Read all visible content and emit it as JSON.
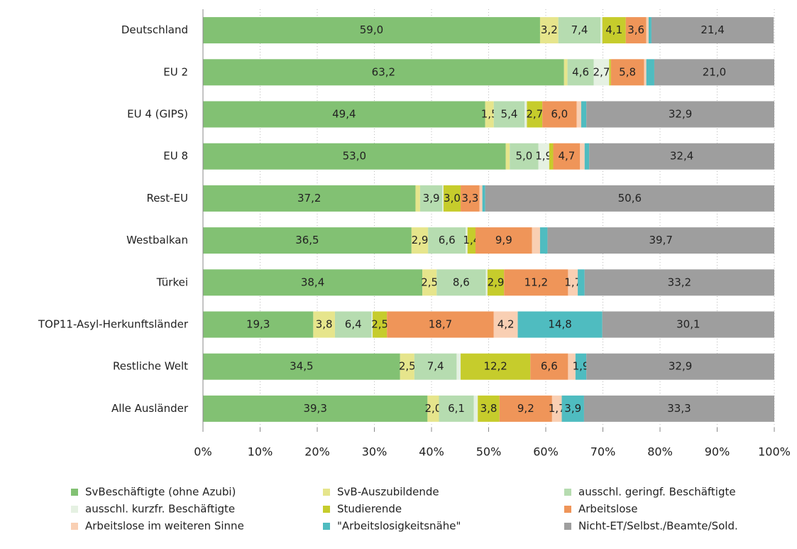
{
  "chart_data": {
    "type": "stacked-bar-horizontal",
    "categories": [
      "Deutschland",
      "EU 2",
      "EU 4 (GIPS)",
      "EU 8",
      "Rest-EU",
      "Westbalkan",
      "Türkei",
      "TOP11-Asyl-Herkunftsländer",
      "Restliche Welt",
      "Alle Ausländer"
    ],
    "series": [
      {
        "name": "SvBeschäftigte (ohne Azubi)",
        "color": "#82c173",
        "values": [
          59.0,
          63.2,
          49.4,
          53.0,
          37.2,
          36.5,
          38.4,
          19.3,
          34.5,
          39.3
        ],
        "value_labels": [
          "59,0",
          "63,2",
          "49,4",
          "53,0",
          "37,2",
          "36,5",
          "38,4",
          "19,3",
          "34,5",
          "39,3"
        ]
      },
      {
        "name": "SvB-Auszubildende",
        "color": "#e6e58c",
        "values": [
          3.2,
          0.6,
          1.5,
          0.7,
          0.8,
          2.9,
          2.5,
          3.8,
          2.5,
          2.0
        ],
        "value_labels": [
          "3,2",
          null,
          "1,5",
          null,
          null,
          "2,9",
          "2,5",
          "3,8",
          "2,5",
          "2,0"
        ]
      },
      {
        "name": "ausschl. geringf. Beschäftigte",
        "color": "#b6dcb0",
        "values": [
          7.4,
          4.6,
          5.4,
          5.0,
          3.9,
          6.6,
          8.6,
          6.4,
          7.4,
          6.1
        ],
        "value_labels": [
          "7,4",
          "4,6",
          "5,4",
          "5,0",
          "3,9",
          "6,6",
          "8,6",
          "6,4",
          "7,4",
          "6,1"
        ]
      },
      {
        "name": "ausschl. kurzfr. Beschäftigte",
        "color": "#e5f1e2",
        "values": [
          0.3,
          2.7,
          0.4,
          1.9,
          0.2,
          0.3,
          0.3,
          0.2,
          0.7,
          0.7
        ],
        "value_labels": [
          null,
          "2,7",
          null,
          "1,9",
          null,
          null,
          null,
          null,
          null,
          null
        ]
      },
      {
        "name": "Studierende",
        "color": "#c6cc2c",
        "values": [
          4.1,
          0.3,
          2.7,
          0.7,
          3.0,
          1.4,
          2.9,
          2.5,
          12.2,
          3.8
        ],
        "value_labels": [
          "4,1",
          null,
          "2,7",
          null,
          "3,0",
          "1,4",
          "2,9",
          "2,5",
          "12,2",
          "3,8"
        ]
      },
      {
        "name": "Arbeitslose",
        "color": "#ef9559",
        "values": [
          3.6,
          5.8,
          6.0,
          4.7,
          3.3,
          9.9,
          11.2,
          18.7,
          6.6,
          9.2
        ],
        "value_labels": [
          "3,6",
          "5,8",
          "6,0",
          "4,7",
          "3,3",
          "9,9",
          "11,2",
          "18,7",
          "6,6",
          "9,2"
        ]
      },
      {
        "name": "Arbeitslose im weiteren Sinne",
        "color": "#f9cfb3",
        "values": [
          0.4,
          0.4,
          0.8,
          0.8,
          0.5,
          1.4,
          1.7,
          4.2,
          1.3,
          1.7
        ],
        "value_labels": [
          null,
          null,
          null,
          null,
          null,
          null,
          "1,7",
          "4,2",
          null,
          "1,7"
        ]
      },
      {
        "name": "\"Arbeitslosigkeitsnähe\"",
        "color": "#4fbcc0",
        "values": [
          0.5,
          1.4,
          0.9,
          0.8,
          0.5,
          1.3,
          1.2,
          14.8,
          1.9,
          3.9
        ],
        "value_labels": [
          null,
          null,
          null,
          null,
          null,
          null,
          null,
          "14,8",
          "1,9",
          "3,9"
        ]
      },
      {
        "name": "Nicht-ET/Selbst./Beamte/Sold.",
        "color": "#9e9e9e",
        "values": [
          21.4,
          21.0,
          32.9,
          32.4,
          50.6,
          39.7,
          33.2,
          30.1,
          32.9,
          33.3
        ],
        "value_labels": [
          "21,4",
          "21,0",
          "32,9",
          "32,4",
          "50,6",
          "39,7",
          "33,2",
          "30,1",
          "32,9",
          "33,3"
        ]
      }
    ],
    "xlim": [
      0,
      100
    ],
    "xticks": [
      {
        "value": 0,
        "label": "0%"
      },
      {
        "value": 10,
        "label": "10%"
      },
      {
        "value": 20,
        "label": "20%"
      },
      {
        "value": 30,
        "label": "30%"
      },
      {
        "value": 40,
        "label": "40%"
      },
      {
        "value": 50,
        "label": "50%"
      },
      {
        "value": 60,
        "label": "60%"
      },
      {
        "value": 70,
        "label": "70%"
      },
      {
        "value": 80,
        "label": "80%"
      },
      {
        "value": 90,
        "label": "90%"
      },
      {
        "value": 100,
        "label": "100%"
      }
    ],
    "grid": true,
    "legend": "bottom"
  }
}
